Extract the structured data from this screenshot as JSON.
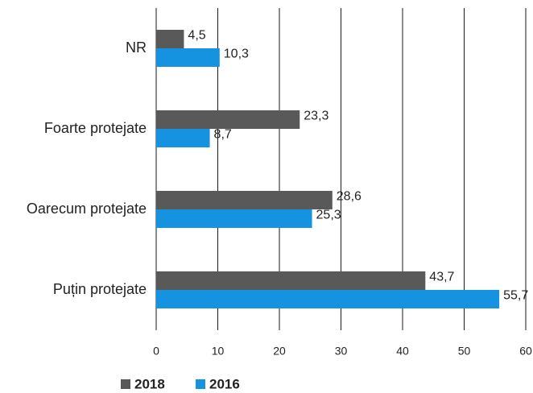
{
  "chart_data": {
    "type": "bar",
    "orientation": "horizontal",
    "categories": [
      "NR",
      "Foarte protejate",
      "Oarecum protejate",
      "Puțin protejate"
    ],
    "series": [
      {
        "name": "2018",
        "color": "#595959",
        "values": [
          4.5,
          23.3,
          28.6,
          43.7
        ],
        "value_labels": [
          "4,5",
          "23,3",
          "28,6",
          "43,7"
        ]
      },
      {
        "name": "2016",
        "color": "#1593e0",
        "values": [
          10.3,
          8.7,
          25.3,
          55.7
        ],
        "value_labels": [
          "10,3",
          "8,7",
          "25,3",
          "55,7"
        ]
      }
    ],
    "xlim": [
      0,
      60
    ],
    "xticks": [
      0,
      10,
      20,
      30,
      40,
      50,
      60
    ],
    "grid": true,
    "legend": "bottom"
  }
}
